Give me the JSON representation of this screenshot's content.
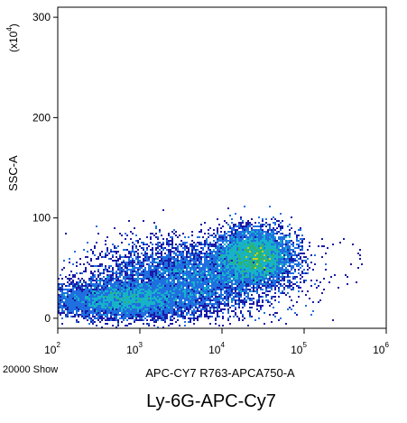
{
  "chart_data": {
    "type": "scatter",
    "title": "Ly-6G-APC-Cy7",
    "xlabel": "APC-CY7 R763-APCA750-A",
    "ylabel": "SSC-A",
    "y_multiplier": "(x10",
    "y_multiplier_exp": "4",
    "y_multiplier_close": ")",
    "event_count_label": "20000 Show",
    "xscale": "log",
    "xlim": [
      100,
      1000000
    ],
    "ylim": [
      -10,
      310
    ],
    "x_ticks": [
      {
        "base": "10",
        "exp": "2",
        "value": 100
      },
      {
        "base": "10",
        "exp": "3",
        "value": 1000
      },
      {
        "base": "10",
        "exp": "4",
        "value": 10000
      },
      {
        "base": "10",
        "exp": "5",
        "value": 100000
      },
      {
        "base": "10",
        "exp": "6",
        "value": 1000000
      }
    ],
    "y_ticks": [
      {
        "label": "0",
        "value": 0
      },
      {
        "label": "100",
        "value": 100
      },
      {
        "label": "200",
        "value": 200
      },
      {
        "label": "300",
        "value": 300
      }
    ],
    "grid": false,
    "colormap": [
      "#1a1aa6",
      "#1f6fe0",
      "#16b3c8",
      "#2fb36b",
      "#c9d21a"
    ],
    "populations": [
      {
        "x_center": 600,
        "x_spread_decades": 0.45,
        "y_center": 18,
        "y_spread": 9,
        "events": 5200
      },
      {
        "x_center": 25000,
        "x_spread_decades": 0.22,
        "y_center": 62,
        "y_spread": 13,
        "events": 7200
      },
      {
        "x_center": 4000,
        "x_spread_decades": 0.55,
        "y_center": 40,
        "y_spread": 18,
        "events": 6200
      }
    ]
  }
}
